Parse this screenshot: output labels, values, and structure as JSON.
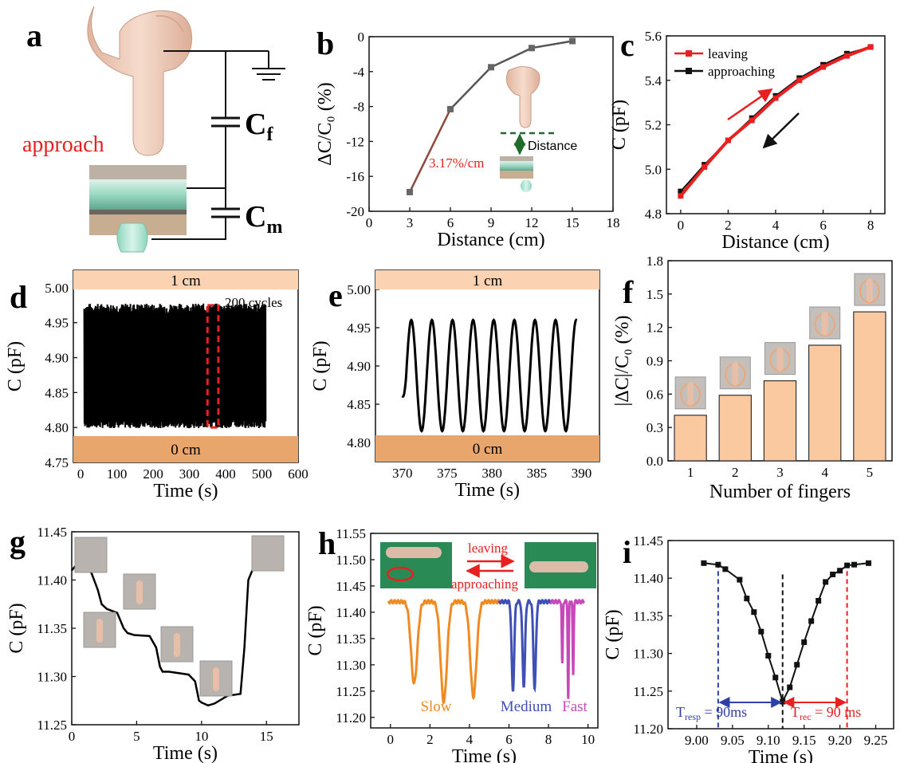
{
  "panels": {
    "a": {
      "letter": "a",
      "label_approach": "approach",
      "cf_main": "C",
      "cf_sub": "f",
      "cm_main": "C",
      "cm_sub": "m"
    }
  },
  "chart_data": [
    {
      "id": "b",
      "letter": "b",
      "type": "line",
      "xlabel": "Distance (cm)",
      "ylabel": "ΔC/C₀ (%)",
      "xlim": [
        0,
        18
      ],
      "ylim": [
        -20,
        0
      ],
      "xticks": [
        0,
        3,
        6,
        9,
        12,
        15,
        18
      ],
      "yticks": [
        0,
        -4,
        -8,
        -12,
        -16,
        -20
      ],
      "series": [
        {
          "x": [
            3,
            6,
            9,
            12,
            15
          ],
          "y": [
            -17.8,
            -8.3,
            -3.5,
            -1.3,
            -0.5
          ]
        }
      ],
      "annotation": "3.17%/cm",
      "inset_label": "Distance"
    },
    {
      "id": "c",
      "letter": "c",
      "type": "line",
      "xlabel": "Distance (cm)",
      "ylabel": "C (pF)",
      "xlim": [
        -0.6,
        8.6
      ],
      "ylim": [
        4.8,
        5.6
      ],
      "xticks": [
        0,
        2,
        4,
        6,
        8
      ],
      "yticks": [
        4.8,
        5.0,
        5.2,
        5.4,
        5.6
      ],
      "legend": "top-left",
      "series": [
        {
          "name": "leaving",
          "color": "#e8201f",
          "x": [
            0,
            1,
            2,
            3,
            4,
            5,
            6,
            7,
            8
          ],
          "y": [
            4.88,
            5.01,
            5.13,
            5.22,
            5.32,
            5.4,
            5.46,
            5.51,
            5.55
          ]
        },
        {
          "name": "approaching",
          "color": "#111111",
          "x": [
            0,
            1,
            2,
            3,
            4,
            5,
            6,
            7,
            8
          ],
          "y": [
            4.9,
            5.02,
            5.13,
            5.23,
            5.33,
            5.41,
            5.47,
            5.52,
            5.55
          ]
        }
      ]
    },
    {
      "id": "d",
      "letter": "d",
      "type": "line",
      "xlabel": "Time (s)",
      "ylabel": "C (pF)",
      "xlim": [
        -20,
        600
      ],
      "ylim": [
        4.75,
        5.025
      ],
      "xticks": [
        0,
        100,
        200,
        300,
        400,
        500,
        600
      ],
      "yticks": [
        4.75,
        4.8,
        4.85,
        4.9,
        4.95,
        5.0
      ],
      "band_top": "1 cm",
      "band_bottom": "0 cm",
      "annotation": "200 cycles",
      "signal": {
        "x_range": [
          10,
          510
        ],
        "min": 4.805,
        "max": 4.97
      }
    },
    {
      "id": "e",
      "letter": "e",
      "type": "line",
      "xlabel": "Time (s)",
      "ylabel": "C (pF)",
      "xlim": [
        367,
        392
      ],
      "ylim": [
        4.775,
        5.025
      ],
      "xticks": [
        370,
        375,
        380,
        385,
        390
      ],
      "yticks": [
        4.8,
        4.85,
        4.9,
        4.95,
        5.0
      ],
      "band_top": "1 cm",
      "band_bottom": "0 cm",
      "signal": {
        "x_range": [
          370,
          389.5
        ],
        "peaks_x": [
          371,
          373.3,
          375.6,
          377.9,
          380.2,
          382.5,
          384.8,
          387.1,
          389.0
        ],
        "max": 4.96,
        "min": 4.815
      }
    },
    {
      "id": "f",
      "letter": "f",
      "type": "bar",
      "xlabel": "Number of fingers",
      "ylabel": "|ΔC|/C₀ (%)",
      "ylim": [
        0,
        1.8
      ],
      "yticks": [
        0.0,
        0.3,
        0.6,
        0.9,
        1.2,
        1.5,
        1.8
      ],
      "categories": [
        "1",
        "2",
        "3",
        "4",
        "5"
      ],
      "values": [
        0.41,
        0.59,
        0.72,
        1.04,
        1.34
      ],
      "bar_color": "#fac99f"
    },
    {
      "id": "g",
      "letter": "g",
      "type": "line",
      "xlabel": "Time (s)",
      "ylabel": "C (pF)",
      "xlim": [
        0,
        17.5
      ],
      "ylim": [
        11.25,
        11.45
      ],
      "xticks": [
        0,
        5,
        10,
        15
      ],
      "yticks": [
        11.25,
        11.3,
        11.35,
        11.4,
        11.45
      ],
      "series": [
        {
          "x": [
            0,
            0.3,
            1,
            1.5,
            2,
            2.3,
            2.7,
            3.5,
            4,
            4.3,
            4.8,
            6,
            6.5,
            6.8,
            7,
            7.5,
            9,
            9.5,
            9.8,
            10,
            10.5,
            11,
            12,
            13,
            13.3,
            13.6,
            14,
            14.5,
            15,
            16
          ],
          "y": [
            11.41,
            11.415,
            11.41,
            11.408,
            11.39,
            11.375,
            11.37,
            11.366,
            11.35,
            11.345,
            11.343,
            11.342,
            11.33,
            11.31,
            11.305,
            11.305,
            11.302,
            11.295,
            11.275,
            11.273,
            11.27,
            11.272,
            11.28,
            11.282,
            11.33,
            11.4,
            11.413,
            11.415,
            11.415,
            11.417
          ]
        }
      ]
    },
    {
      "id": "h",
      "letter": "h",
      "type": "line",
      "xlabel": "Time (s)",
      "ylabel": "C (pF)",
      "xlim": [
        -1,
        10.5
      ],
      "ylim": [
        11.18,
        11.55
      ],
      "xticks": [
        0,
        2,
        4,
        6,
        8,
        10
      ],
      "yticks": [
        11.2,
        11.25,
        11.3,
        11.35,
        11.4,
        11.45,
        11.5,
        11.55
      ],
      "label_leaving": "leaving",
      "label_approaching": "approaching",
      "series": [
        {
          "name": "Slow",
          "color": "#f08a23",
          "baseline": 11.42,
          "dips": [
            [
              1.2,
              11.265,
              0.45
            ],
            [
              2.7,
              11.23,
              0.45
            ],
            [
              4.2,
              11.24,
              0.45
            ]
          ],
          "x_range": [
            -0.1,
            5.5
          ]
        },
        {
          "name": "Medium",
          "color": "#3f4fb5",
          "baseline": 11.42,
          "dips": [
            [
              6.2,
              11.25,
              0.18
            ],
            [
              6.75,
              11.26,
              0.18
            ],
            [
              7.3,
              11.255,
              0.18
            ]
          ],
          "x_range": [
            5.5,
            8.1
          ]
        },
        {
          "name": "Fast",
          "color": "#c748b8",
          "baseline": 11.42,
          "dips": [
            [
              8.7,
              11.3,
              0.07
            ],
            [
              9.0,
              11.235,
              0.07
            ],
            [
              9.25,
              11.28,
              0.07
            ]
          ],
          "x_range": [
            8.1,
            9.8
          ]
        }
      ]
    },
    {
      "id": "i",
      "letter": "i",
      "type": "line",
      "xlabel": "Time (s)",
      "ylabel": "C (pF)",
      "xlim": [
        8.96,
        9.275
      ],
      "ylim": [
        11.2,
        11.45
      ],
      "xticks": [
        9.0,
        9.05,
        9.1,
        9.15,
        9.2,
        9.25
      ],
      "yticks": [
        11.2,
        11.25,
        11.3,
        11.35,
        11.4,
        11.45
      ],
      "series": [
        {
          "x": [
            9.01,
            9.03,
            9.04,
            9.06,
            9.07,
            9.08,
            9.09,
            9.1,
            9.11,
            9.12,
            9.13,
            9.14,
            9.15,
            9.16,
            9.17,
            9.18,
            9.19,
            9.2,
            9.21,
            9.22,
            9.24
          ],
          "y": [
            11.42,
            11.418,
            11.412,
            11.398,
            11.373,
            11.355,
            11.329,
            11.297,
            11.268,
            11.236,
            11.255,
            11.285,
            11.315,
            11.343,
            11.37,
            11.395,
            11.405,
            11.41,
            11.417,
            11.418,
            11.42
          ]
        }
      ],
      "t_resp_main": "T",
      "t_resp_sub": "resp",
      "t_resp_value": " = 90ms",
      "t_rec_main": "T",
      "t_rec_sub": "rec",
      "t_rec_value": " = 90 ms",
      "resp_x": [
        9.03,
        9.12
      ],
      "rec_x": [
        9.12,
        9.21
      ]
    }
  ]
}
